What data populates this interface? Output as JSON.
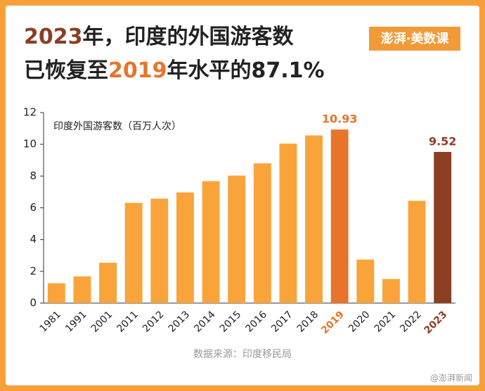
{
  "chart_data": {
    "type": "bar",
    "title_lines": [
      [
        {
          "text": "2023",
          "color": "#8b3e22"
        },
        {
          "text": "年，印度的外国游客数",
          "color": "#222222"
        }
      ],
      [
        {
          "text": "已恢复至",
          "color": "#222222"
        },
        {
          "text": "2019",
          "color": "#e8742a"
        },
        {
          "text": "年水平的87.1%",
          "color": "#222222"
        }
      ]
    ],
    "logo": "澎湃·美数课",
    "y_label": "印度外国游客数（百万人次）",
    "categories": [
      "1981",
      "1991",
      "2001",
      "2011",
      "2012",
      "2013",
      "2014",
      "2015",
      "2016",
      "2017",
      "2018",
      "2019",
      "2020",
      "2021",
      "2022",
      "2023"
    ],
    "values": [
      1.25,
      1.68,
      2.54,
      6.31,
      6.58,
      6.97,
      7.68,
      8.03,
      8.8,
      10.04,
      10.56,
      10.93,
      2.74,
      1.52,
      6.44,
      9.52
    ],
    "value_labels": [
      null,
      null,
      null,
      null,
      null,
      null,
      null,
      null,
      null,
      null,
      null,
      "10.93",
      null,
      null,
      null,
      "9.52"
    ],
    "color": "#f9a43a",
    "colors": [
      "#f9a43a",
      "#f9a43a",
      "#f9a43a",
      "#f9a43a",
      "#f9a43a",
      "#f9a43a",
      "#f9a43a",
      "#f9a43a",
      "#f9a43a",
      "#f9a43a",
      "#f9a43a",
      "#e8742a",
      "#f9a43a",
      "#f9a43a",
      "#f9a43a",
      "#8b3e22"
    ],
    "ylim": [
      0,
      12
    ],
    "yticks": [
      0,
      2,
      4,
      6,
      8,
      10,
      12
    ],
    "grid": false,
    "source": "数据来源：印度移民局",
    "watermark": "@澎湃新闻"
  }
}
